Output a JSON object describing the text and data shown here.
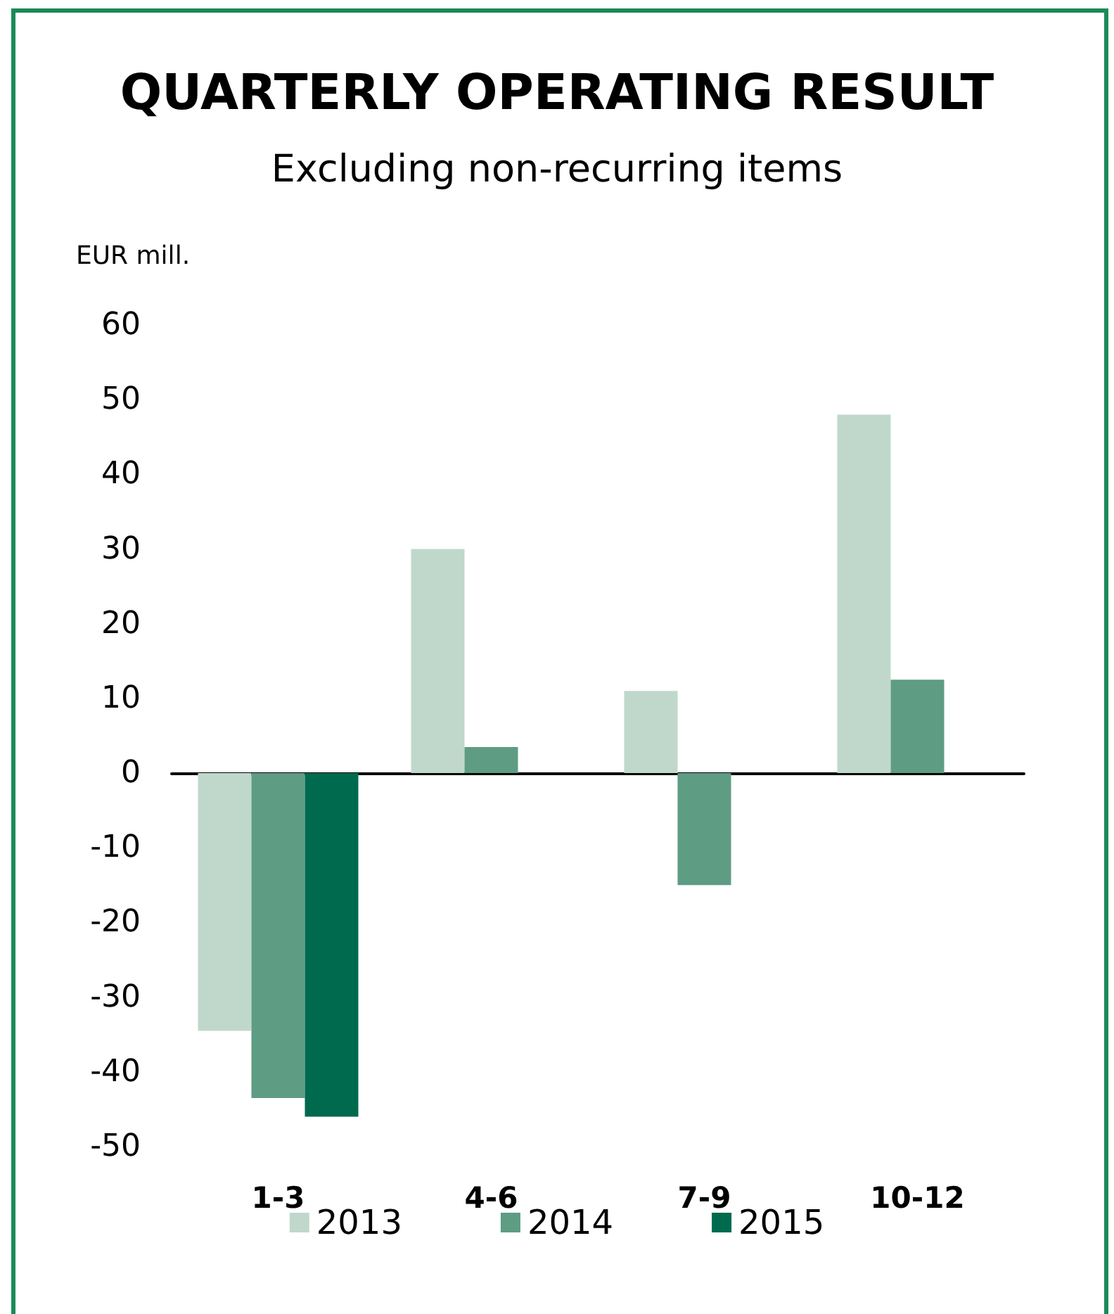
{
  "chart_data": {
    "type": "bar",
    "title": "QUARTERLY OPERATING RESULT",
    "subtitle": "Excluding non-recurring items",
    "ylabel": "EUR mill.",
    "categories": [
      "1-3",
      "4-6",
      "7-9",
      "10-12"
    ],
    "series": [
      {
        "name": "2013",
        "color": "#c0d8cc",
        "values": [
          -34.5,
          30,
          11,
          48
        ]
      },
      {
        "name": "2014",
        "color": "#5e9c84",
        "values": [
          -43.5,
          3.5,
          -15,
          12.5
        ]
      },
      {
        "name": "2015",
        "color": "#006a4e",
        "values": [
          -46,
          null,
          null,
          null
        ]
      }
    ],
    "ylim": [
      -50,
      60
    ],
    "yticks": [
      -50,
      -40,
      -30,
      -20,
      -10,
      0,
      10,
      20,
      30,
      40,
      50,
      60
    ],
    "legend": "bottom"
  }
}
